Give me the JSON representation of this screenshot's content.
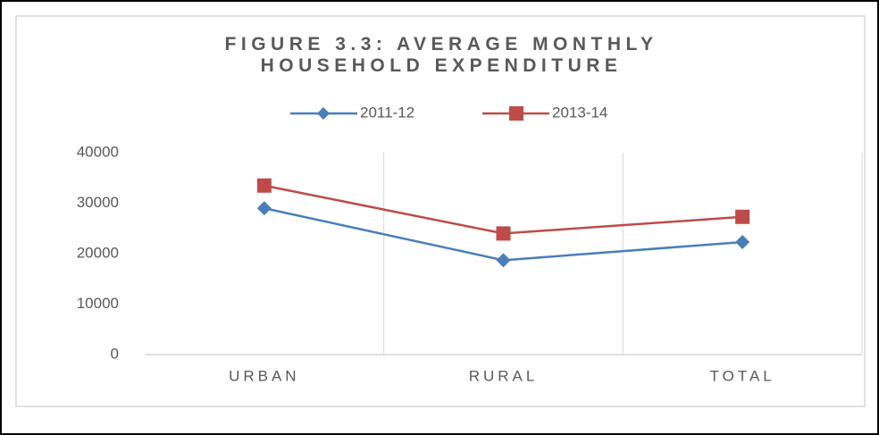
{
  "chart_data": {
    "type": "line",
    "title": "FIGURE 3.3: AVERAGE MONTHLY HOUSEHOLD EXPENDITURE",
    "categories": [
      "URBAN",
      "RURAL",
      "TOTAL"
    ],
    "series": [
      {
        "name": "2011-12",
        "color": "#4a7ebb",
        "marker": "diamond",
        "values": [
          29000,
          18700,
          22300
        ]
      },
      {
        "name": "2013-14",
        "color": "#be4b48",
        "marker": "square",
        "values": [
          33500,
          24000,
          27300
        ]
      }
    ],
    "ylim": [
      0,
      40000
    ],
    "yticks": [
      0,
      10000,
      20000,
      30000,
      40000
    ],
    "grid": "vertical",
    "legend": "top"
  }
}
